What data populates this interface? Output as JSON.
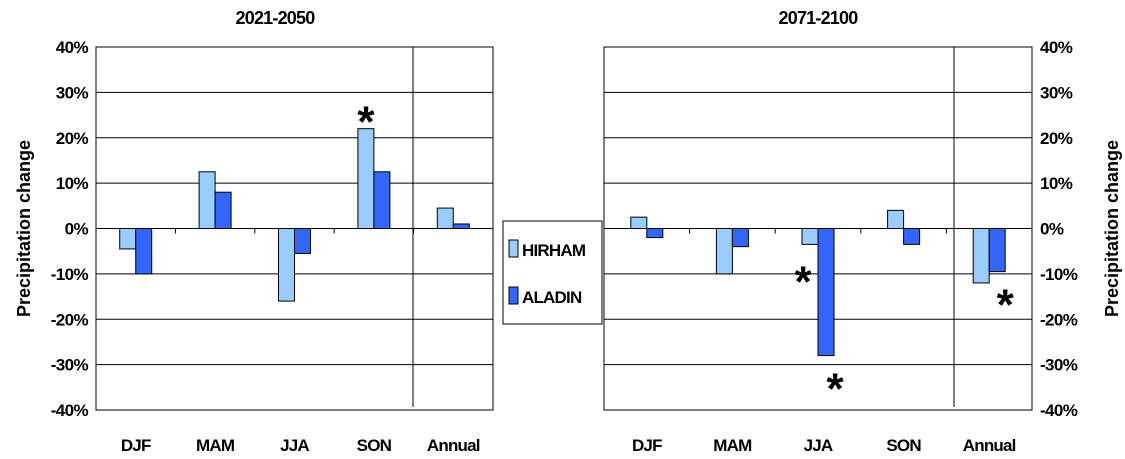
{
  "chart_data": [
    {
      "type": "bar",
      "title": "2021-2050",
      "ylabel": "Precipitation change",
      "ylabel_side": "left",
      "ylim": [
        -40,
        40
      ],
      "y_ticks": [
        "-40%",
        "-30%",
        "-20%",
        "-10%",
        "0%",
        "10%",
        "20%",
        "30%",
        "40%"
      ],
      "y_tick_values": [
        -40,
        -30,
        -20,
        -10,
        0,
        10,
        20,
        30,
        40
      ],
      "categories": [
        "DJF",
        "MAM",
        "JJA",
        "SON",
        "Annual"
      ],
      "series": [
        {
          "name": "HIRHAM",
          "color": "#99CCFF",
          "values": [
            -4.5,
            12.5,
            -16,
            22,
            4.5
          ]
        },
        {
          "name": "ALADIN",
          "color": "#3366FF",
          "values": [
            -10,
            8,
            -5.5,
            12.5,
            1
          ]
        }
      ],
      "annotations": [
        {
          "text": "*",
          "category": "SON",
          "series": "HIRHAM"
        }
      ],
      "grid": true
    },
    {
      "type": "bar",
      "title": "2071-2100",
      "ylabel": "Precipitation change",
      "ylabel_side": "right",
      "ylim": [
        -40,
        40
      ],
      "y_ticks": [
        "-40%",
        "-30%",
        "-20%",
        "-10%",
        "0%",
        "10%",
        "20%",
        "30%",
        "40%"
      ],
      "y_tick_values": [
        -40,
        -30,
        -20,
        -10,
        0,
        10,
        20,
        30,
        40
      ],
      "categories": [
        "DJF",
        "MAM",
        "JJA",
        "SON",
        "Annual"
      ],
      "series": [
        {
          "name": "HIRHAM",
          "color": "#99CCFF",
          "values": [
            2.5,
            -10,
            -3.5,
            4,
            -12
          ]
        },
        {
          "name": "ALADIN",
          "color": "#3366FF",
          "values": [
            -2,
            -4,
            -28,
            -3.5,
            -9.5
          ]
        }
      ],
      "annotations": [
        {
          "text": "*",
          "category": "JJA",
          "series": "HIRHAM"
        },
        {
          "text": "*",
          "category": "JJA",
          "series": "ALADIN"
        },
        {
          "text": "*",
          "category": "Annual",
          "series": "ALADIN"
        }
      ],
      "grid": true
    }
  ],
  "legend": {
    "placement": "center",
    "items": [
      {
        "label": "HIRHAM",
        "color": "#99CCFF"
      },
      {
        "label": "ALADIN",
        "color": "#3366FF"
      }
    ]
  }
}
